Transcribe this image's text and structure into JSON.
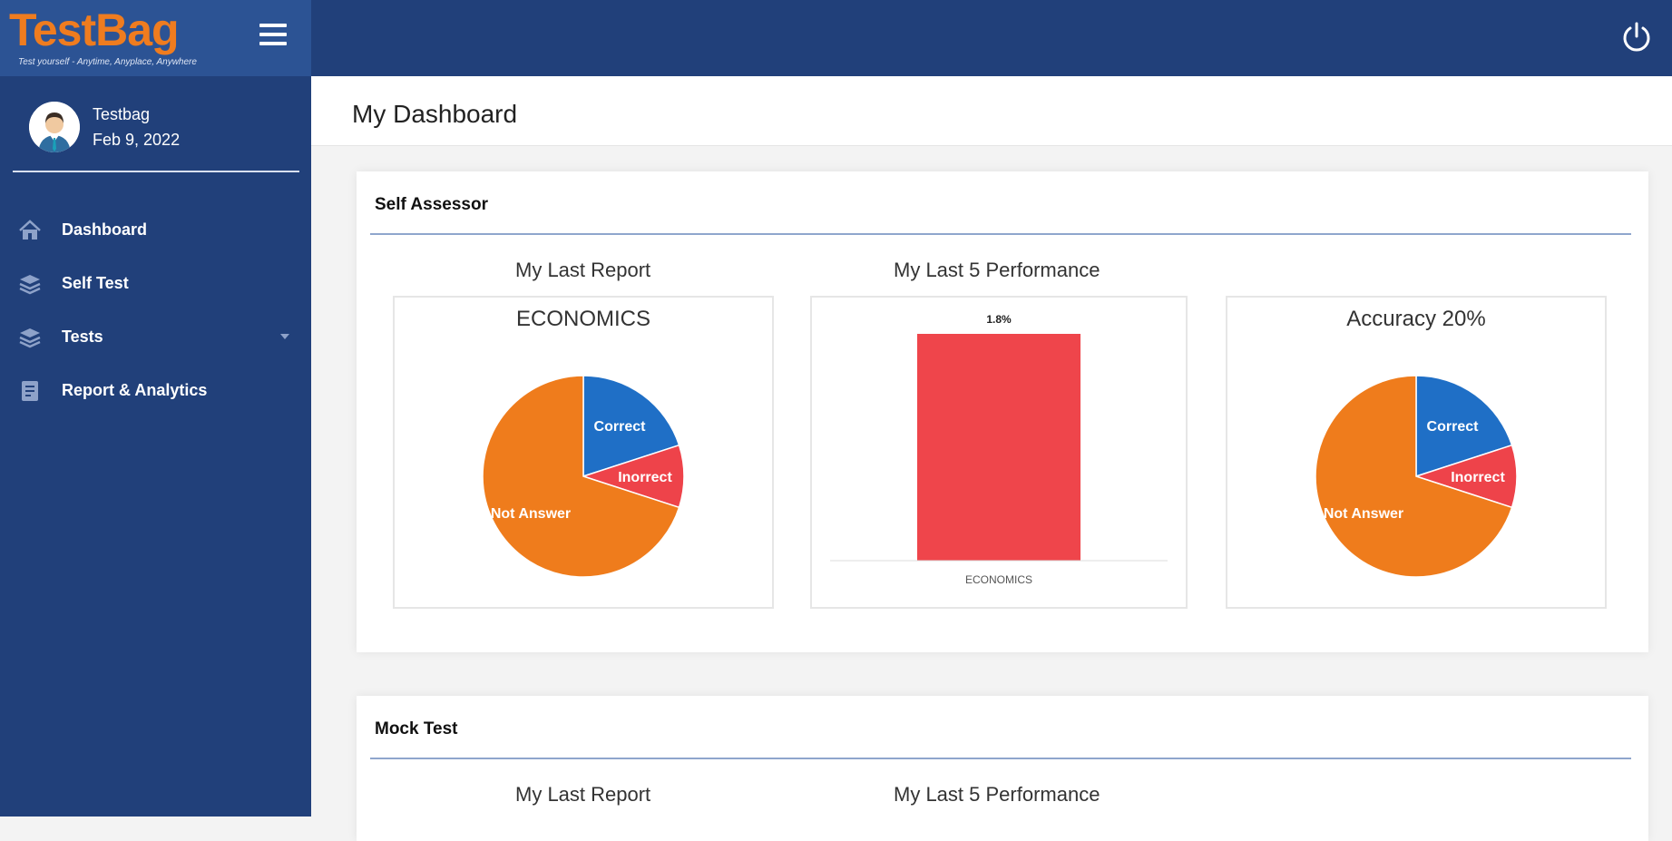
{
  "brand": {
    "logo": "TestBag",
    "tagline": "Test yourself - Anytime, Anyplace, Anywhere",
    "hamburger_icon": "menu-icon"
  },
  "header": {
    "power_icon": "power-icon"
  },
  "user": {
    "name": "Testbag",
    "date": "Feb 9, 2022"
  },
  "sidebar": {
    "items": [
      {
        "label": "Dashboard",
        "icon": "home-icon"
      },
      {
        "label": "Self Test",
        "icon": "layers-icon"
      },
      {
        "label": "Tests",
        "icon": "layers-icon"
      },
      {
        "label": "Report & Analytics",
        "icon": "report-icon"
      }
    ]
  },
  "page": {
    "title": "My Dashboard"
  },
  "self_assessor": {
    "heading": "Self Assessor",
    "last_report_label": "My Last Report",
    "last5_label": "My Last 5 Performance"
  },
  "mock_test": {
    "heading": "Mock Test",
    "last_report_label": "My Last Report",
    "last5_label": "My Last 5 Performance"
  },
  "colors": {
    "correct": "#1f6fc6",
    "incorrect": "#ee434a",
    "not_answered": "#ef7c1c",
    "bar": "#ef454b"
  },
  "chart_data": [
    {
      "type": "pie",
      "title": "ECONOMICS",
      "slices": [
        {
          "label": "Correct",
          "value": 20
        },
        {
          "label": "Inorrect",
          "value": 10
        },
        {
          "label": "Not Answer",
          "value": 70
        }
      ]
    },
    {
      "type": "bar",
      "categories": [
        "ECONOMICS"
      ],
      "values": [
        1.8
      ],
      "data_labels": [
        "1.8%"
      ]
    },
    {
      "type": "pie",
      "title": "Accuracy 20%",
      "slices": [
        {
          "label": "Correct",
          "value": 20
        },
        {
          "label": "Inorrect",
          "value": 10
        },
        {
          "label": "Not Answer",
          "value": 70
        }
      ]
    }
  ]
}
